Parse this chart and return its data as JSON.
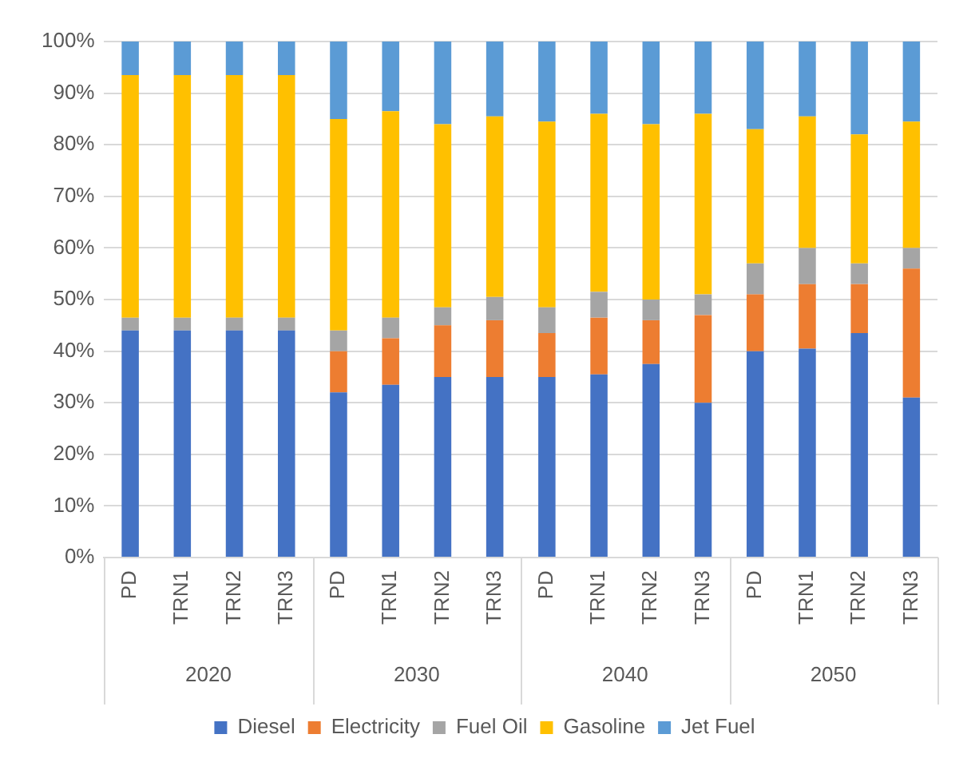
{
  "chart_data": {
    "type": "bar",
    "stacked": true,
    "categories": [
      "PD",
      "TRN1",
      "TRN2",
      "TRN3",
      "PD",
      "TRN1",
      "TRN2",
      "TRN3",
      "PD",
      "TRN1",
      "TRN2",
      "TRN3",
      "PD",
      "TRN1",
      "TRN2",
      "TRN3"
    ],
    "annotations": [
      "2020",
      "2030",
      "2040",
      "2050"
    ],
    "series": [
      {
        "name": "Diesel",
        "color": "#4472c4",
        "values": [
          44,
          44,
          44,
          44,
          32,
          33.5,
          35,
          35,
          35,
          35.5,
          37.5,
          30,
          40,
          40.5,
          43.5,
          31
        ]
      },
      {
        "name": "Electricity",
        "color": "#ed7d31",
        "values": [
          0,
          0,
          0,
          0,
          8,
          9,
          10,
          11,
          8.5,
          11,
          8.5,
          17,
          11,
          12.5,
          9.5,
          25
        ]
      },
      {
        "name": "Fuel Oil",
        "color": "#a5a5a5",
        "values": [
          2.5,
          2.5,
          2.5,
          2.5,
          4,
          4,
          3.5,
          4.5,
          5,
          5,
          4,
          4,
          6,
          7,
          4,
          4
        ]
      },
      {
        "name": "Gasoline",
        "color": "#ffc000",
        "values": [
          47,
          47,
          47,
          47,
          41,
          40,
          35.5,
          35,
          36,
          34.5,
          34,
          35,
          26,
          25.5,
          25,
          24.5
        ]
      },
      {
        "name": "Jet Fuel",
        "color": "#5b9bd5",
        "values": [
          6.5,
          6.5,
          6.5,
          6.5,
          15,
          13.5,
          16,
          14.5,
          15.5,
          14,
          16,
          14,
          17,
          14.5,
          18,
          15.5
        ]
      }
    ],
    "ylim": [
      0,
      100
    ],
    "yticks": [
      {
        "value": 0,
        "label": "0%"
      },
      {
        "value": 10,
        "label": "10%"
      },
      {
        "value": 20,
        "label": "20%"
      },
      {
        "value": 30,
        "label": "30%"
      },
      {
        "value": 40,
        "label": "40%"
      },
      {
        "value": 50,
        "label": "50%"
      },
      {
        "value": 60,
        "label": "60%"
      },
      {
        "value": 70,
        "label": "70%"
      },
      {
        "value": 80,
        "label": "80%"
      },
      {
        "value": 90,
        "label": "90%"
      },
      {
        "value": 100,
        "label": "100%"
      }
    ],
    "grid": "y",
    "legend": "bottom"
  }
}
